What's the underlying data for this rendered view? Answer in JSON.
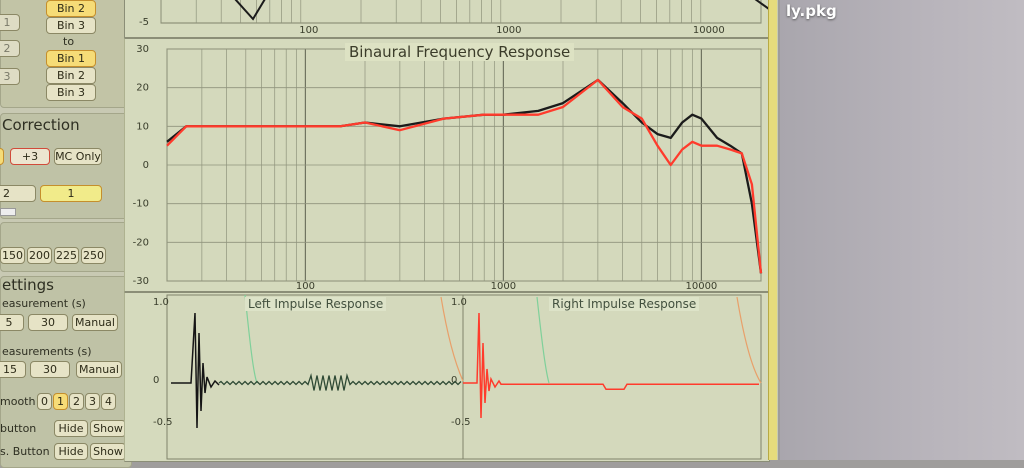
{
  "desktop": {
    "file_label": "ly.pkg"
  },
  "panel": {
    "bins_top": [
      "Bin 2",
      "Bin 3"
    ],
    "bins_to_label": "to",
    "bins_bottom": [
      "Bin 1",
      "Bin 2",
      "Bin 3"
    ],
    "left_bins": [
      "1",
      "2",
      "3"
    ],
    "correction": {
      "title": "Correction",
      "plus3": "+3",
      "mc_only": "MC Only",
      "left_value": "2",
      "value_1": "1"
    },
    "ms_options": [
      "150",
      "200",
      "225",
      "250"
    ],
    "settings": {
      "title": "ettings",
      "measurement_label": "easurement (s)",
      "measurement_opts": [
        "5",
        "30",
        "Manual"
      ],
      "measurements_label": "easurements (s)",
      "measurements_opts": [
        "15",
        "30",
        "Manual"
      ],
      "smooth_label": "mooth",
      "smooth_opts": [
        "0",
        "1",
        "2",
        "3",
        "4"
      ],
      "button_label": "button",
      "button_hide": "Hide",
      "button_show": "Show",
      "s_button_label": "s. Button",
      "s_button_hide": "Hide",
      "s_button_show": "Show"
    }
  },
  "top_strip": {
    "y_label": "-5",
    "x_ticks": [
      "100",
      "1000",
      "10000"
    ]
  },
  "freq_plot": {
    "title": "Binaural Frequency Response",
    "y_ticks": [
      "30",
      "20",
      "10",
      "0",
      "-10",
      "-20",
      "-30"
    ],
    "x_ticks": [
      "100",
      "1000",
      "10000"
    ],
    "colors": {
      "left": "#1b1b1b",
      "right": "#ff3b2c"
    }
  },
  "impulse": {
    "left_title": "Left Impulse Response",
    "right_title": "Right Impulse Response",
    "y_ticks_left": [
      "1.0",
      "0",
      "-0.5"
    ],
    "y_ticks_right": [
      "1.0",
      "0",
      "-0.5"
    ]
  },
  "chart_data": [
    {
      "type": "line",
      "title": "Binaural Frequency Response",
      "xscale": "log",
      "xlim": [
        20,
        20000
      ],
      "ylim": [
        -30,
        30
      ],
      "series": [
        {
          "x": [
            20,
            25,
            40,
            60,
            100,
            150,
            200,
            300,
            500,
            800,
            1000,
            1500,
            2000,
            3000,
            4000,
            5000,
            6000,
            7000,
            8000,
            9000,
            10000,
            12000,
            14000,
            16000,
            18000,
            20000
          ],
          "y": [
            6,
            10,
            10,
            10,
            10,
            10,
            11,
            10,
            12,
            13,
            13,
            14,
            16,
            22,
            16,
            11,
            8,
            7,
            11,
            13,
            12,
            7,
            5,
            3,
            -10,
            -28
          ]
        },
        {
          "x": [
            20,
            25,
            40,
            60,
            100,
            150,
            200,
            300,
            500,
            800,
            1000,
            1500,
            2000,
            3000,
            4000,
            5000,
            6000,
            7000,
            8000,
            9000,
            10000,
            12000,
            14000,
            16000,
            18000,
            20000
          ],
          "y": [
            5,
            10,
            10,
            10,
            10,
            10,
            11,
            9,
            12,
            13,
            13,
            13,
            15,
            22,
            15,
            12,
            5,
            0,
            4,
            6,
            5,
            5,
            4,
            3,
            -5,
            -28
          ]
        }
      ]
    }
  ]
}
